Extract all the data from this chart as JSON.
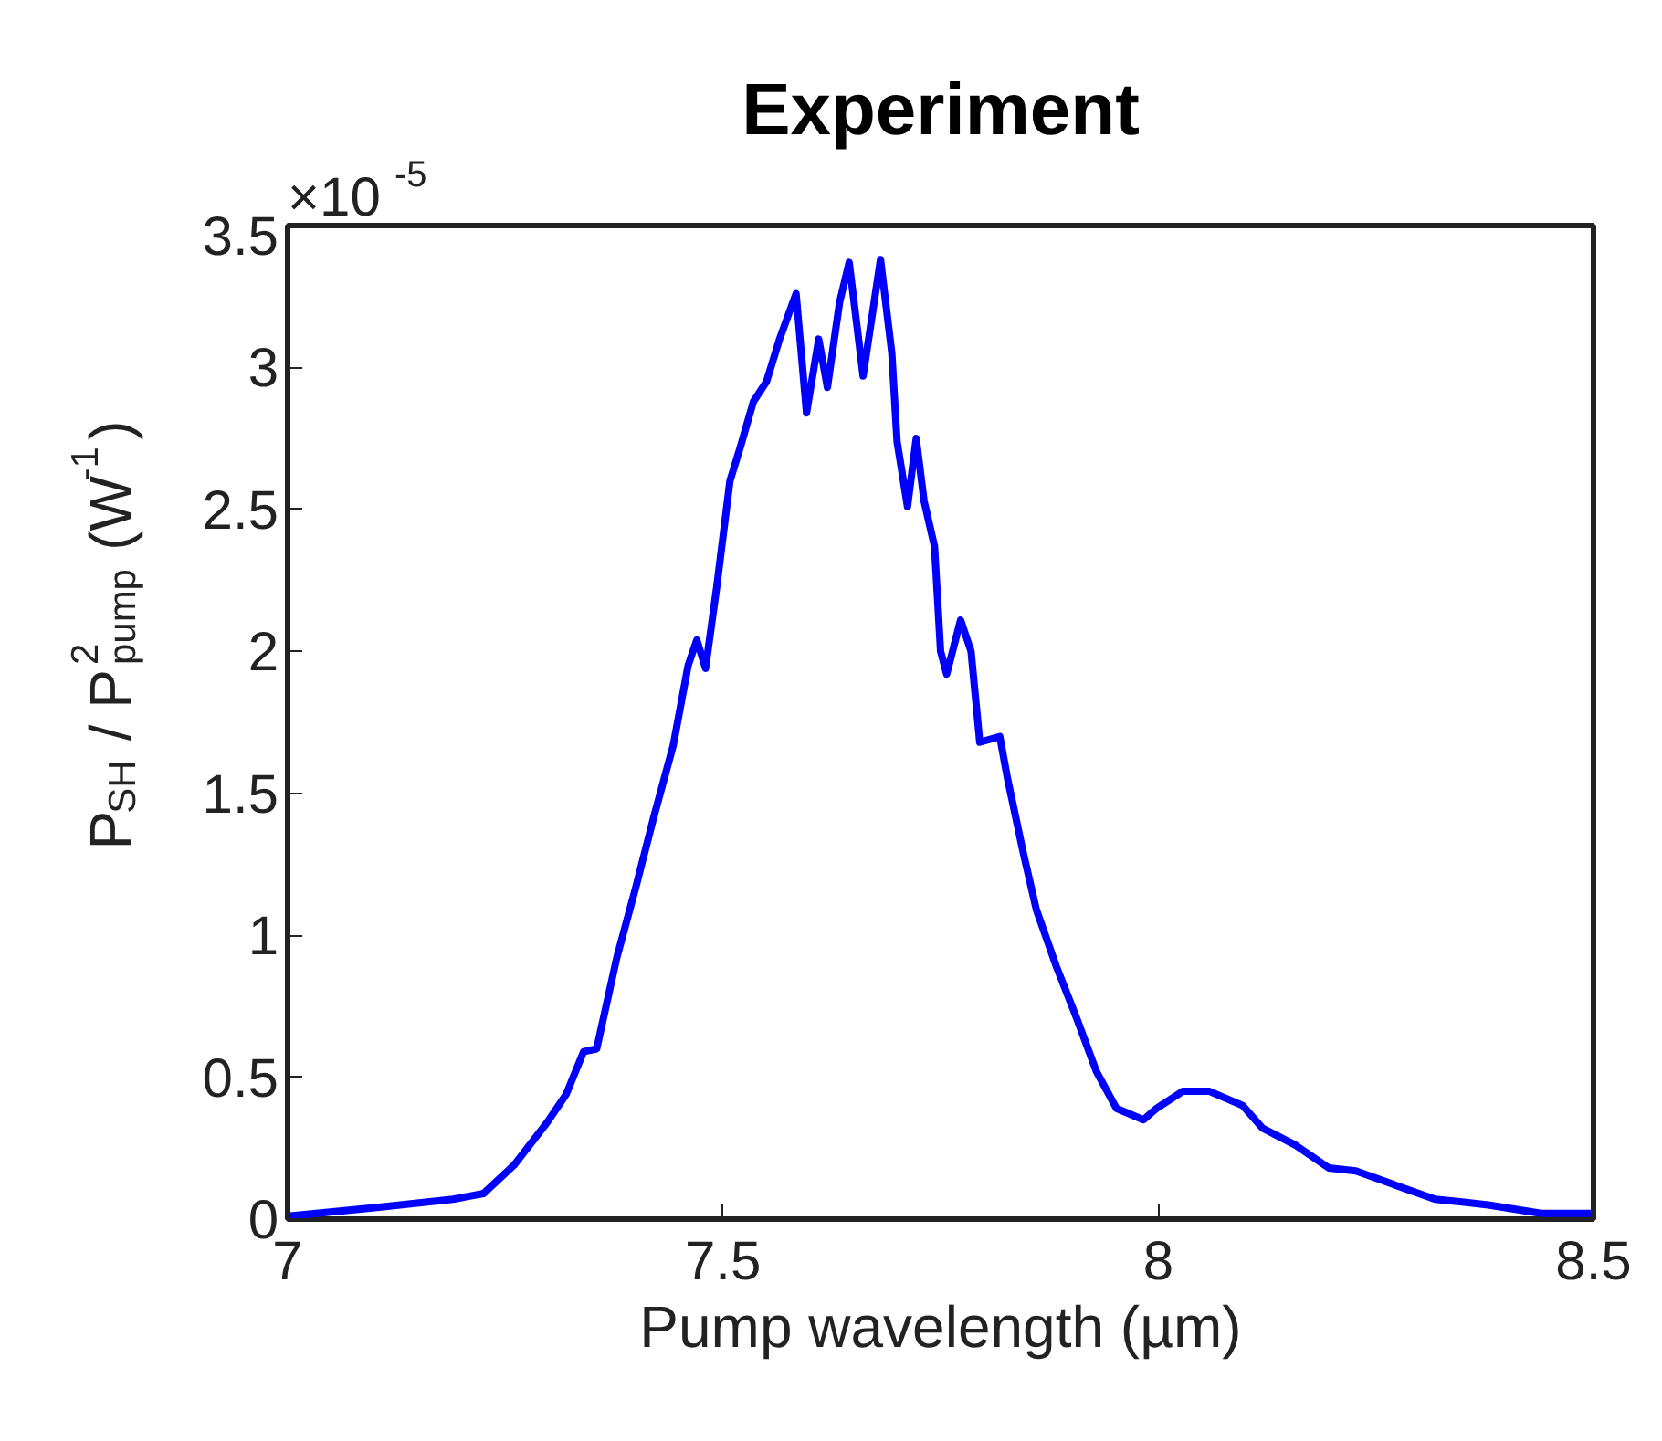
{
  "chart_data": {
    "type": "line",
    "title": "Experiment",
    "xlabel": "Pump wavelength (µm)",
    "ylabel": "P$_{SH}$ / P$^{2}$$_{pump}$ (W$^{-1}$)",
    "annotations": [
      "×10$^{-5}$"
    ],
    "x": [
      7.0,
      7.1,
      7.19,
      7.225,
      7.26,
      7.298,
      7.32,
      7.34,
      7.355,
      7.378,
      7.4,
      7.42,
      7.443,
      7.46,
      7.47,
      7.48,
      7.493,
      7.508,
      7.52,
      7.535,
      7.55,
      7.565,
      7.584,
      7.596,
      7.61,
      7.62,
      7.634,
      7.645,
      7.661,
      7.681,
      7.694,
      7.7,
      7.712,
      7.722,
      7.731,
      7.743,
      7.75,
      7.757,
      7.773,
      7.785,
      7.795,
      7.818,
      7.827,
      7.845,
      7.86,
      7.883,
      7.906,
      7.929,
      7.952,
      7.983,
      7.998,
      8.028,
      8.059,
      8.097,
      8.12,
      8.158,
      8.196,
      8.227,
      8.272,
      8.318,
      8.349,
      8.379,
      8.44,
      8.497
    ],
    "series": [
      {
        "color": "#0000ff",
        "values": [
          0.01,
          0.04,
          0.07,
          0.09,
          0.19,
          0.34,
          0.44,
          0.59,
          0.6,
          0.92,
          1.17,
          1.41,
          1.67,
          1.95,
          2.04,
          1.94,
          2.23,
          2.6,
          2.72,
          2.88,
          2.95,
          3.1,
          3.26,
          2.84,
          3.1,
          2.93,
          3.23,
          3.37,
          2.97,
          3.38,
          3.05,
          2.74,
          2.51,
          2.75,
          2.53,
          2.37,
          2.0,
          1.92,
          2.11,
          2.0,
          1.68,
          1.7,
          1.55,
          1.29,
          1.09,
          0.89,
          0.71,
          0.52,
          0.39,
          0.35,
          0.39,
          0.45,
          0.45,
          0.4,
          0.32,
          0.26,
          0.18,
          0.17,
          0.12,
          0.07,
          0.06,
          0.05,
          0.02,
          0.02
        ]
      }
    ],
    "xlim": [
      7,
      8.5
    ],
    "xticks": [
      7,
      7.5,
      8,
      8.5
    ],
    "ylim": [
      0,
      3.5
    ],
    "yticks": [
      0,
      0.5,
      1,
      1.5,
      2,
      2.5,
      3,
      3.5
    ],
    "grid": false,
    "line_style": "solid"
  }
}
